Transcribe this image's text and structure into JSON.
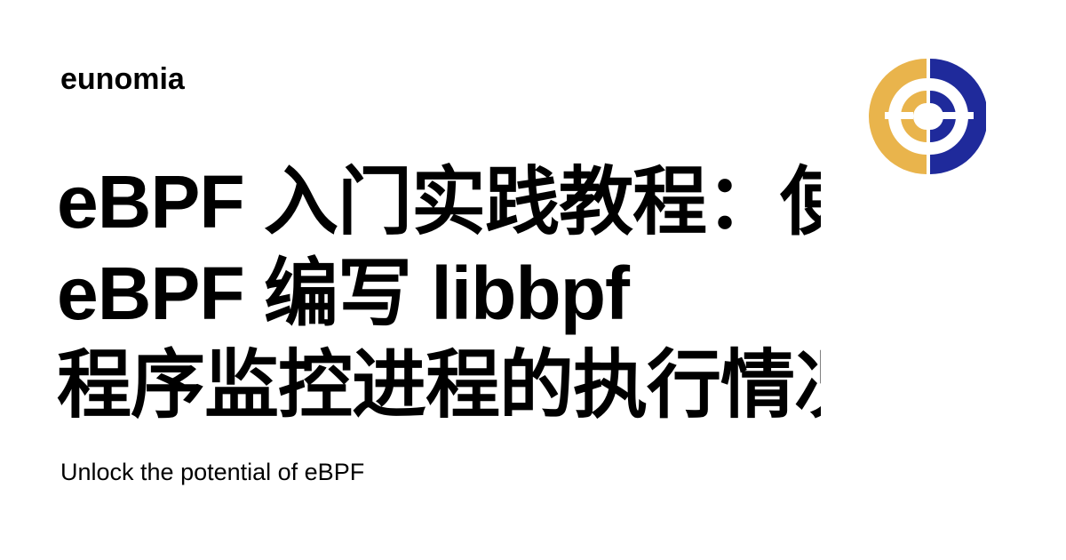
{
  "site": {
    "name": "eunomia"
  },
  "article": {
    "title_lines": [
      "eBPF 入门实践教程：使用 libbpf",
      "eBPF 编写 libbpf",
      "程序监控进程的执行情况 exec() 等"
    ],
    "tagline": "Unlock the potential of eBPF"
  },
  "logo": {
    "icon": "eunomia-logo-icon",
    "colors": {
      "gold": "#E9B44C",
      "navy": "#1F2A9B"
    }
  }
}
